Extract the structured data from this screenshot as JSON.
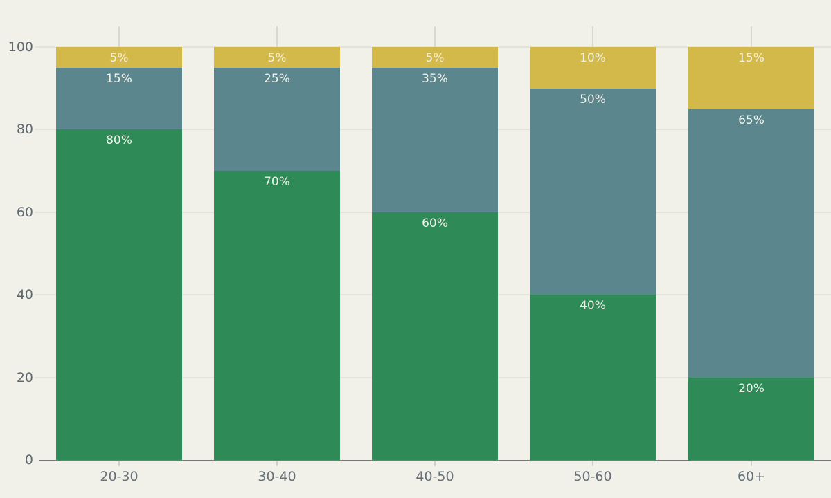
{
  "chart_data": {
    "type": "bar",
    "stacked": true,
    "percent_stacked": true,
    "title": "",
    "xlabel": "",
    "ylabel": "",
    "legend": "none",
    "grid": "horizontal",
    "ylim": [
      0,
      100
    ],
    "y_ticks": [
      0,
      20,
      40,
      60,
      80,
      100
    ],
    "categories": [
      "20-30",
      "30-40",
      "40-50",
      "50-60",
      "60+"
    ],
    "series": [
      {
        "name": "green-bottom-segment",
        "color": "#2e8b57",
        "values": [
          80,
          70,
          60,
          40,
          20
        ]
      },
      {
        "name": "teal-middle-segment",
        "color": "#5b868e",
        "values": [
          15,
          25,
          35,
          50,
          65
        ]
      },
      {
        "name": "gold-top-segment",
        "color": "#d3b94a",
        "values": [
          5,
          5,
          5,
          10,
          15
        ]
      }
    ],
    "segment_labels": [
      [
        "80%",
        "15%",
        "5%"
      ],
      [
        "70%",
        "25%",
        "5%"
      ],
      [
        "60%",
        "35%",
        "5%"
      ],
      [
        "40%",
        "50%",
        "10%"
      ],
      [
        "20%",
        "65%",
        "15%"
      ]
    ]
  },
  "colors": {
    "background": "#f1f1ea",
    "gridline": "#e4e3dc",
    "axis_line": "#787b75",
    "top_tick": "#d8d7d0",
    "bottom_tick": "#cfcec7",
    "y_axis_label": "#5e6a70",
    "x_axis_label": "#66717a",
    "data_label": "#f0f1e9"
  }
}
